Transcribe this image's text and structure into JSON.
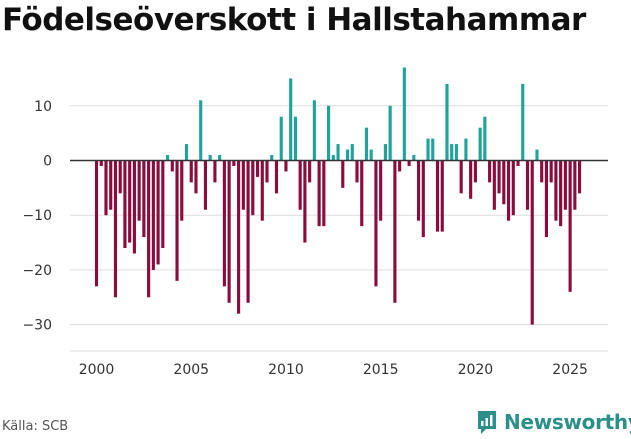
{
  "chart_data": {
    "type": "bar",
    "title": "Födelseöverskott i Hallstahammar",
    "xlabel": "",
    "ylabel": "",
    "ylim": [
      -35,
      18
    ],
    "xlim": [
      1998.6,
      2027.0
    ],
    "yticks": [
      10,
      0,
      -10,
      -20,
      -30
    ],
    "ytick_labels": [
      "10",
      "0",
      "−10",
      "−20",
      "−30"
    ],
    "xticks": [
      2000,
      2005,
      2010,
      2015,
      2020,
      2025
    ],
    "xtick_labels": [
      "2000",
      "2005",
      "2010",
      "2015",
      "2020",
      "2025"
    ],
    "positive_color": "#1fa39b",
    "negative_color": "#8c0b3e",
    "start": 2000.0,
    "step": 0.25,
    "values": [
      -23,
      -1,
      -10,
      -9,
      -25,
      -6,
      -16,
      -15,
      -17,
      -11,
      -14,
      -25,
      -20,
      -19,
      -16,
      1,
      -2,
      -22,
      -11,
      3,
      -4,
      -6,
      11,
      -9,
      1,
      -4,
      1,
      -23,
      -26,
      -1,
      -28,
      -9,
      -26,
      -10,
      -3,
      -11,
      -4,
      1,
      -6,
      8,
      -2,
      15,
      8,
      -9,
      -15,
      -4,
      11,
      -12,
      -12,
      10,
      1,
      3,
      -5,
      2,
      3,
      -4,
      -12,
      6,
      2,
      -23,
      -11,
      3,
      10,
      -26,
      -2,
      17,
      -1,
      1,
      -11,
      -14,
      4,
      4,
      -13,
      -13,
      14,
      3,
      3,
      -6,
      4,
      -7,
      -4,
      6,
      8,
      -4,
      -9,
      -6,
      -8,
      -11,
      -10,
      -1,
      14,
      -9,
      -30,
      2,
      -4,
      -14,
      -4,
      -11,
      -12,
      -9,
      -24,
      -9,
      -6
    ]
  },
  "footer": {
    "source": "Källa: SCB",
    "brand": "Newsworthy"
  }
}
